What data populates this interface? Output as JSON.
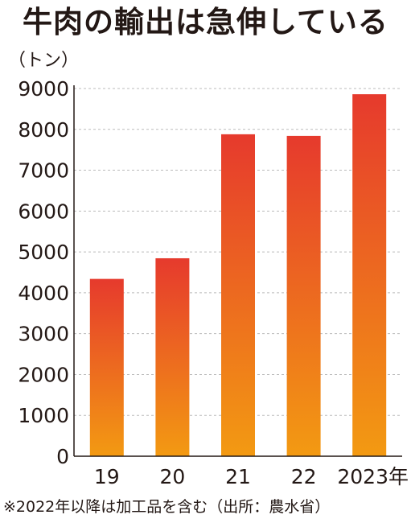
{
  "title": "牛肉の輸出は急伸している",
  "unit_label": "（トン）",
  "footnote": "※2022年以降は加工品を含む（出所：農水省）",
  "colors": {
    "bar_top": "#E63A2D",
    "bar_bottom": "#F39A12",
    "grid": "#BBBBBB",
    "axis": "#231815",
    "text": "#231815"
  },
  "chart_data": {
    "type": "bar",
    "title": "牛肉の輸出は急伸している",
    "ylabel": "（トン）",
    "xlabel": "",
    "categories": [
      "19",
      "20",
      "21",
      "22",
      "2023年"
    ],
    "values": [
      4340,
      4845,
      7880,
      7840,
      8860
    ],
    "ylim": [
      0,
      9000
    ],
    "yticks": [
      0,
      1000,
      2000,
      3000,
      4000,
      5000,
      6000,
      7000,
      8000,
      9000
    ],
    "grid": true
  }
}
